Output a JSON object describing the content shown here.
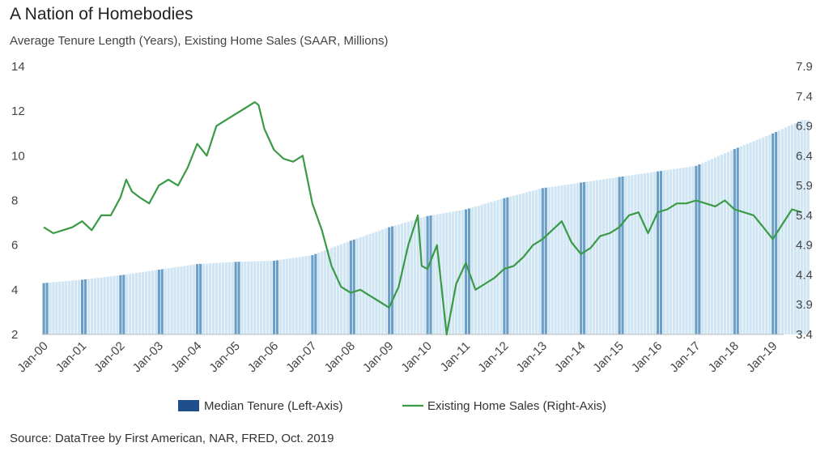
{
  "header": {
    "title": "A Nation of Homebodies",
    "subtitle": "Average Tenure Length (Years), Existing Home Sales (SAAR, Millions)"
  },
  "footer": {
    "source": "Source: DataTree by First American, NAR, FRED, Oct. 2019"
  },
  "colors": {
    "bar_light": "#c3def0",
    "bar_dark": "#3a7fb4",
    "line": "#3a9a45",
    "legend_bar": "#1f4e8c"
  },
  "chart_data": {
    "type": "bar+line",
    "title": "A Nation of Homebodies",
    "subtitle": "Average Tenure Length (Years), Existing Home Sales (SAAR, Millions)",
    "categories": [
      "Jan-00",
      "Jan-01",
      "Jan-02",
      "Jan-03",
      "Jan-04",
      "Jan-05",
      "Jan-06",
      "Jan-07",
      "Jan-08",
      "Jan-09",
      "Jan-10",
      "Jan-11",
      "Jan-12",
      "Jan-13",
      "Jan-14",
      "Jan-15",
      "Jan-16",
      "Jan-17",
      "Jan-18",
      "Jan-19"
    ],
    "left_axis": {
      "label": "Median Tenure (Left-Axis)",
      "min": 2,
      "max": 14,
      "ticks": [
        "2",
        "4",
        "6",
        "8",
        "10",
        "12",
        "14"
      ]
    },
    "right_axis": {
      "label": "Existing Home Sales (Right-Axis)",
      "min": 3.4,
      "max": 7.9,
      "ticks": [
        "3.4",
        "3.9",
        "4.4",
        "4.9",
        "5.4",
        "5.9",
        "6.4",
        "6.9",
        "7.4",
        "7.9"
      ]
    },
    "legend": [
      "Median Tenure (Left-Axis)",
      "Existing Home Sales (Right-Axis)"
    ],
    "series": [
      {
        "name": "Median Tenure (Left-Axis)",
        "type": "bar",
        "axis": "left",
        "x": [
          0,
          1,
          2,
          3,
          4,
          5,
          6,
          7,
          8,
          9,
          10,
          11,
          12,
          13,
          14,
          15,
          16,
          17,
          18,
          19,
          19.75
        ],
        "values": [
          4.3,
          4.45,
          4.65,
          4.9,
          5.15,
          5.25,
          5.3,
          5.55,
          6.2,
          6.8,
          7.3,
          7.6,
          8.1,
          8.55,
          8.8,
          9.05,
          9.3,
          9.55,
          10.3,
          11.0,
          11.6
        ]
      },
      {
        "name": "Existing Home Sales (Right-Axis)",
        "type": "line",
        "axis": "right",
        "x": [
          0,
          0.25,
          0.5,
          0.75,
          1,
          1.25,
          1.5,
          1.75,
          2,
          2.15,
          2.3,
          2.5,
          2.75,
          3,
          3.25,
          3.5,
          3.75,
          4,
          4.25,
          4.5,
          4.75,
          5,
          5.25,
          5.5,
          5.6,
          5.75,
          6,
          6.25,
          6.5,
          6.75,
          7,
          7.25,
          7.5,
          7.75,
          8,
          8.25,
          8.5,
          8.75,
          9,
          9.25,
          9.5,
          9.75,
          9.85,
          10,
          10.25,
          10.5,
          10.75,
          11,
          11.25,
          11.5,
          11.75,
          12,
          12.25,
          12.5,
          12.75,
          13,
          13.25,
          13.5,
          13.75,
          14,
          14.25,
          14.5,
          14.75,
          15,
          15.25,
          15.5,
          15.75,
          16,
          16.25,
          16.5,
          16.75,
          17,
          17.25,
          17.5,
          17.75,
          18,
          18.25,
          18.5,
          18.75,
          19,
          19.25,
          19.5,
          19.75
        ],
        "values": [
          5.2,
          5.1,
          5.15,
          5.2,
          5.3,
          5.15,
          5.4,
          5.4,
          5.7,
          6.0,
          5.8,
          5.7,
          5.6,
          5.9,
          6.0,
          5.9,
          6.2,
          6.6,
          6.4,
          6.9,
          7.0,
          7.1,
          7.2,
          7.3,
          7.25,
          6.85,
          6.5,
          6.35,
          6.3,
          6.4,
          5.6,
          5.15,
          4.55,
          4.2,
          4.1,
          4.15,
          4.05,
          3.95,
          3.85,
          4.2,
          4.9,
          5.4,
          4.55,
          4.5,
          4.9,
          3.4,
          4.25,
          4.6,
          4.15,
          4.25,
          4.35,
          4.5,
          4.55,
          4.7,
          4.9,
          5.0,
          5.15,
          5.3,
          4.95,
          4.75,
          4.85,
          5.05,
          5.1,
          5.2,
          5.4,
          5.45,
          5.1,
          5.45,
          5.5,
          5.6,
          5.6,
          5.65,
          5.6,
          5.55,
          5.65,
          5.5,
          5.45,
          5.4,
          5.2,
          5.0,
          5.25,
          5.5,
          5.45
        ]
      }
    ]
  }
}
